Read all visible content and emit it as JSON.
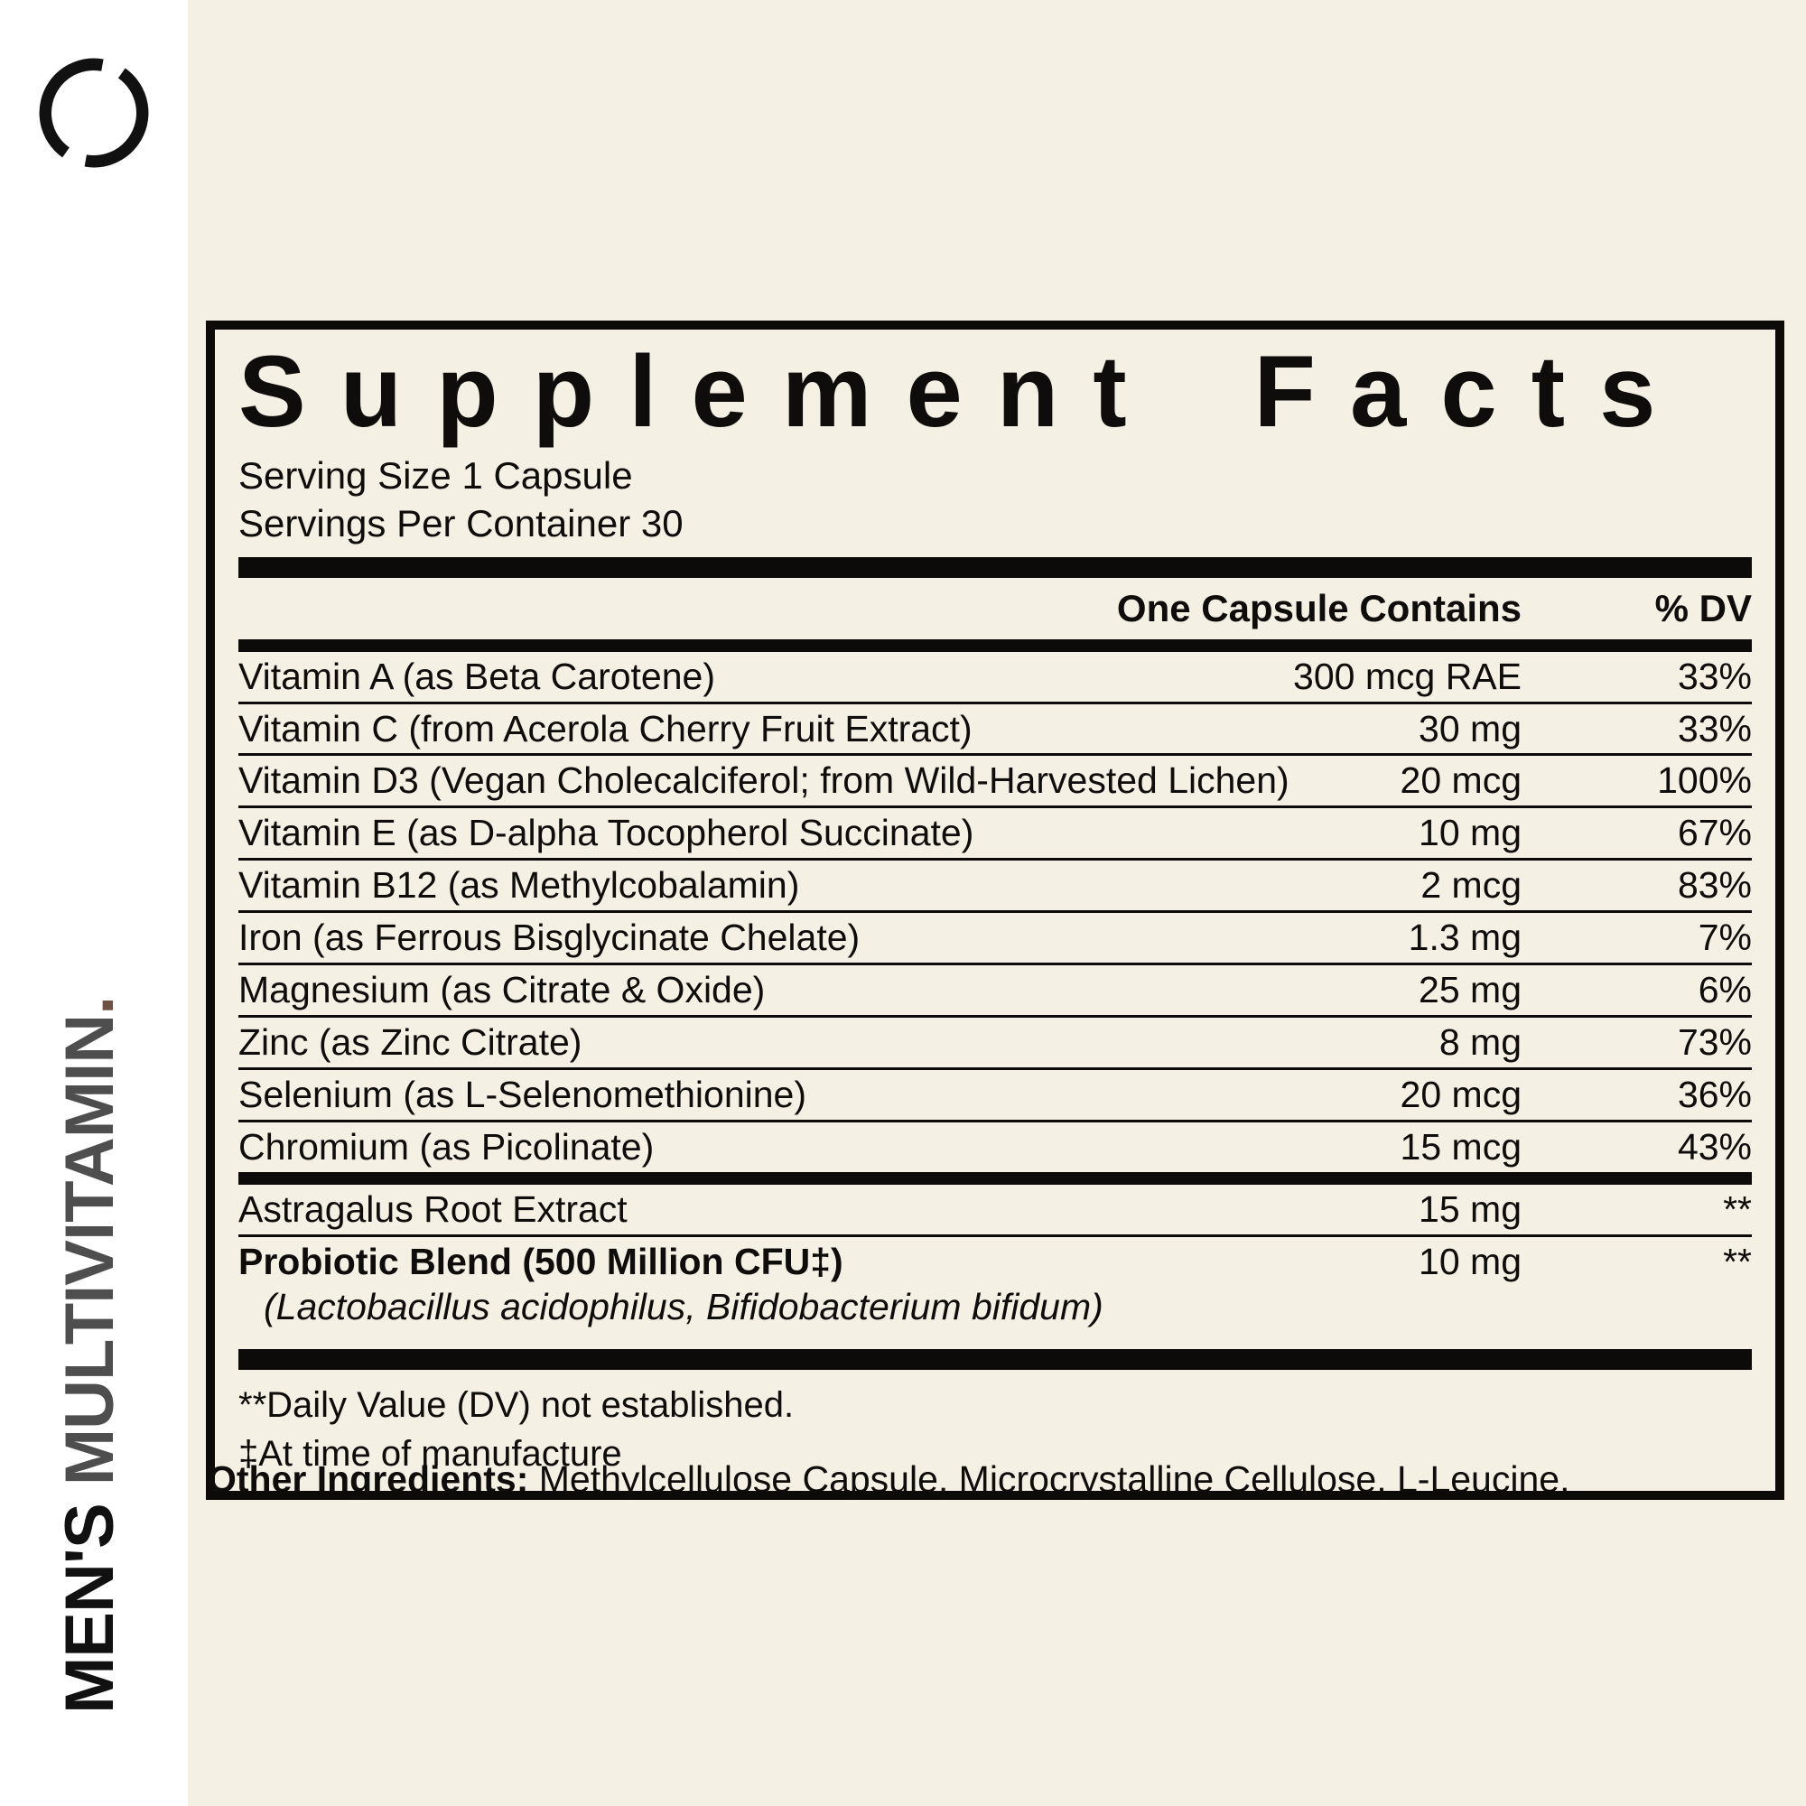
{
  "colors": {
    "background": "#f5f0e4",
    "sidebar_background": "#ffffff",
    "text": "#0e0d0b",
    "brand_gray": "#4e4e4e",
    "brand_period_brown": "#6e5345"
  },
  "sidebar": {
    "logo": "broken-circle-logo",
    "product_line": "MEN'S",
    "product_type": "MULTIVITAMIN",
    "period": "."
  },
  "panel": {
    "title": "Supplement Facts",
    "serving_size": "Serving Size 1 Capsule",
    "servings_per_container": "Servings Per Container 30",
    "col_amount": "One Capsule Contains",
    "col_dv": "% DV",
    "rows": [
      {
        "name": "Vitamin A (as Beta Carotene)",
        "amount": "300 mcg RAE",
        "dv": "33%"
      },
      {
        "name": "Vitamin C (from Acerola Cherry Fruit Extract)",
        "amount": "30 mg",
        "dv": "33%"
      },
      {
        "name": "Vitamin D3 (Vegan Cholecalciferol; from Wild-Harvested Lichen)",
        "amount": "20 mcg",
        "dv": "100%"
      },
      {
        "name": "Vitamin E (as D-alpha Tocopherol Succinate)",
        "amount": "10 mg",
        "dv": "67%"
      },
      {
        "name": "Vitamin B12 (as Methylcobalamin)",
        "amount": "2 mcg",
        "dv": "83%"
      },
      {
        "name": "Iron (as Ferrous Bisglycinate Chelate)",
        "amount": "1.3 mg",
        "dv": "7%"
      },
      {
        "name": "Magnesium (as Citrate & Oxide)",
        "amount": "25 mg",
        "dv": "6%"
      },
      {
        "name": "Zinc (as Zinc Citrate)",
        "amount": "8 mg",
        "dv": "73%"
      },
      {
        "name": "Selenium (as L-Selenomethionine)",
        "amount": "20 mcg",
        "dv": "36%"
      },
      {
        "name": "Chromium (as Picolinate)",
        "amount": "15 mcg",
        "dv": "43%"
      }
    ],
    "extra_rows": [
      {
        "name": "Astragalus Root Extract",
        "amount": "15 mg",
        "dv": "**",
        "bold": false
      },
      {
        "name": "Probiotic Blend (500 Million CFU‡)",
        "sub": "(Lactobacillus acidophilus, Bifidobacterium bifidum)",
        "amount": "10 mg",
        "dv": "**",
        "bold": true
      }
    ],
    "footnotes": [
      "**Daily Value (DV) not established.",
      "‡At time of manufacture"
    ]
  },
  "other_ingredients": {
    "label": "Other Ingredients:",
    "text": "Methylcellulose Capsule, Microcrystalline Cellulose, L-Leucine."
  }
}
